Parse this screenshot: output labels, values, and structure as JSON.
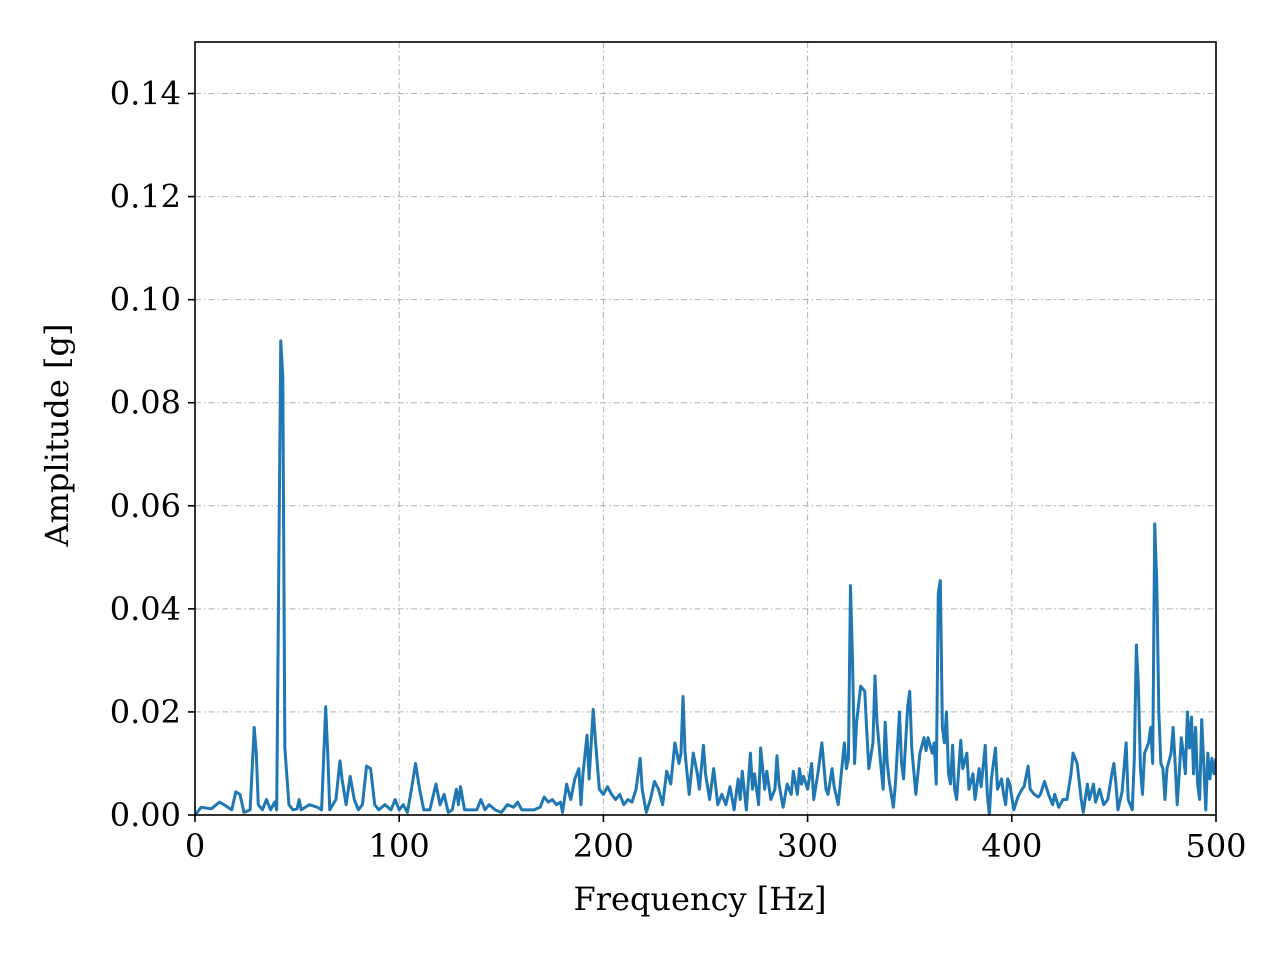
{
  "chart_data": {
    "type": "line",
    "xlabel": "Frequency [Hz]",
    "ylabel": "Amplitude [g]",
    "color": "#1f77b4",
    "grid": true,
    "xlim": [
      0,
      500
    ],
    "ylim": [
      0,
      0.15
    ],
    "xticks": [
      0,
      100,
      200,
      300,
      400,
      500
    ],
    "yticks": [
      {
        "value": 0,
        "label": "0.00"
      },
      {
        "value": 0.02,
        "label": "0.02"
      },
      {
        "value": 0.04,
        "label": "0.04"
      },
      {
        "value": 0.06,
        "label": "0.06"
      },
      {
        "value": 0.08,
        "label": "0.08"
      },
      {
        "value": 0.1,
        "label": "0.10"
      },
      {
        "value": 0.12,
        "label": "0.12"
      },
      {
        "value": 0.14,
        "label": "0.14"
      }
    ],
    "x": [
      0,
      3,
      8,
      12,
      15,
      18,
      20,
      22,
      24,
      27,
      29,
      30,
      31,
      33,
      35,
      37,
      39,
      40,
      42,
      43,
      44,
      46,
      48,
      50,
      51,
      52,
      56,
      60,
      62,
      64,
      65,
      66,
      69,
      71,
      72,
      74,
      76,
      78,
      80,
      82,
      84,
      86,
      88,
      90,
      93,
      96,
      98,
      100,
      102,
      104,
      106,
      108,
      110,
      112,
      115,
      118,
      120,
      122,
      124,
      126,
      128,
      129,
      130,
      132,
      135,
      138,
      140,
      142,
      144,
      147,
      150,
      153,
      156,
      158,
      160,
      163,
      166,
      169,
      171,
      173,
      175,
      177,
      179,
      180,
      182,
      184,
      186,
      188,
      189,
      190,
      192,
      193,
      195,
      196,
      198,
      200,
      202,
      204,
      206,
      208,
      210,
      212,
      214,
      216,
      218,
      219,
      221,
      223,
      225,
      227,
      229,
      231,
      233,
      235,
      237,
      238,
      239,
      240,
      242,
      244,
      246,
      247,
      249,
      250,
      252,
      254,
      256,
      258,
      260,
      262,
      264,
      266,
      267,
      268,
      270,
      272,
      273,
      274,
      276,
      277,
      279,
      280,
      282,
      284,
      285,
      286,
      288,
      290,
      292,
      293,
      295,
      296,
      297,
      298,
      300,
      302,
      303,
      305,
      307,
      309,
      310,
      312,
      313,
      315,
      317,
      318,
      319,
      320,
      321,
      322,
      323,
      324,
      326,
      328,
      329,
      330,
      332,
      333,
      334,
      336,
      337,
      338,
      339,
      340,
      342,
      343,
      345,
      346,
      347,
      349,
      350,
      351,
      353,
      355,
      357,
      358,
      359,
      361,
      362,
      363,
      364,
      365,
      366,
      367,
      368,
      369,
      370,
      371,
      372,
      373,
      375,
      376,
      378,
      379,
      381,
      382,
      384,
      385,
      387,
      388,
      389,
      390,
      392,
      393,
      395,
      396,
      397,
      398,
      399,
      401,
      403,
      405,
      406,
      408,
      409,
      411,
      413,
      414,
      416,
      418,
      420,
      421,
      423,
      425,
      427,
      429,
      430,
      432,
      434,
      435,
      437,
      438,
      440,
      441,
      443,
      445,
      447,
      449,
      450,
      451,
      452,
      454,
      456,
      457,
      459,
      460,
      461,
      462,
      463,
      464,
      465,
      467,
      468,
      469,
      470,
      471,
      472,
      473,
      474,
      475,
      476,
      478,
      479,
      480,
      481,
      482,
      483,
      484,
      485,
      486,
      487,
      488,
      489,
      490,
      491,
      492,
      493,
      494,
      495,
      496,
      497,
      498,
      499,
      500
    ],
    "values": [
      0,
      0.0015,
      0.0012,
      0.0025,
      0.0018,
      0.001,
      0.0045,
      0.004,
      0.0005,
      0.001,
      0.017,
      0.012,
      0.002,
      0.001,
      0.003,
      0.001,
      0.0025,
      0.001,
      0.092,
      0.085,
      0.013,
      0.002,
      0.001,
      0.0012,
      0.003,
      0.001,
      0.002,
      0.0015,
      0.001,
      0.021,
      0.012,
      0.001,
      0.003,
      0.0105,
      0.007,
      0.002,
      0.0075,
      0.003,
      0.001,
      0.002,
      0.0095,
      0.009,
      0.002,
      0.001,
      0.002,
      0.001,
      0.003,
      0.001,
      0.002,
      0.0005,
      0.005,
      0.01,
      0.005,
      0.001,
      0.001,
      0.006,
      0.002,
      0.004,
      0.0005,
      0.001,
      0.005,
      0.002,
      0.0055,
      0.001,
      0.001,
      0.001,
      0.003,
      0.001,
      0.002,
      0.001,
      0.0005,
      0.002,
      0.0015,
      0.0025,
      0.001,
      0.001,
      0.001,
      0.0015,
      0.0035,
      0.0025,
      0.003,
      0.002,
      0.0025,
      0.0005,
      0.006,
      0.003,
      0.007,
      0.009,
      0.002,
      0.008,
      0.0155,
      0.007,
      0.0205,
      0.015,
      0.005,
      0.004,
      0.0055,
      0.004,
      0.003,
      0.004,
      0.002,
      0.003,
      0.0025,
      0.005,
      0.011,
      0.005,
      0.0005,
      0.003,
      0.0065,
      0.005,
      0.002,
      0.0085,
      0.006,
      0.014,
      0.01,
      0.012,
      0.023,
      0.012,
      0.004,
      0.012,
      0.008,
      0.005,
      0.0135,
      0.008,
      0.003,
      0.009,
      0.002,
      0.004,
      0.002,
      0.0055,
      0.001,
      0.007,
      0.003,
      0.0085,
      0.001,
      0.012,
      0.005,
      0.008,
      0.002,
      0.013,
      0.005,
      0.0085,
      0.003,
      0.005,
      0.0115,
      0.006,
      0.0015,
      0.006,
      0.004,
      0.0085,
      0.004,
      0.009,
      0.006,
      0.0075,
      0.005,
      0.01,
      0.003,
      0.008,
      0.014,
      0.005,
      0.004,
      0.009,
      0.0055,
      0.002,
      0.01,
      0.014,
      0.009,
      0.011,
      0.0445,
      0.03,
      0.01,
      0.018,
      0.025,
      0.024,
      0.016,
      0.009,
      0.014,
      0.027,
      0.018,
      0.009,
      0.005,
      0.018,
      0.01,
      0.0065,
      0.0015,
      0.006,
      0.02,
      0.01,
      0.007,
      0.021,
      0.024,
      0.013,
      0.004,
      0.012,
      0.015,
      0.0125,
      0.015,
      0.012,
      0.014,
      0.006,
      0.043,
      0.0455,
      0.017,
      0.014,
      0.02,
      0.008,
      0.006,
      0.0135,
      0.005,
      0.003,
      0.0145,
      0.009,
      0.012,
      0.005,
      0.008,
      0.003,
      0.009,
      0.0055,
      0.0135,
      0.004,
      0,
      0.007,
      0.013,
      0.005,
      0.007,
      0.004,
      0.002,
      0.007,
      0.006,
      0.001,
      0.0035,
      0.005,
      0.0055,
      0.0095,
      0.005,
      0.004,
      0.0035,
      0.004,
      0.0065,
      0.004,
      0.002,
      0.004,
      0.0015,
      0.003,
      0.003,
      0.008,
      0.012,
      0.01,
      0.003,
      0.0005,
      0.006,
      0.003,
      0.006,
      0.0025,
      0.005,
      0.002,
      0.003,
      0.008,
      0.01,
      0.006,
      0.001,
      0.0045,
      0.014,
      0.003,
      0.001,
      0.011,
      0.033,
      0.025,
      0.009,
      0.004,
      0.012,
      0.014,
      0.017,
      0.01,
      0.0565,
      0.045,
      0.02,
      0.01,
      0.009,
      0.003,
      0.009,
      0.012,
      0.017,
      0.01,
      0.002,
      0.008,
      0.015,
      0.012,
      0.008,
      0.02,
      0.013,
      0.019,
      0.008,
      0.017,
      0.006,
      0.003,
      0.0185,
      0.01,
      0.001,
      0.012,
      0.007,
      0.011,
      0.008,
      0.011
    ]
  }
}
